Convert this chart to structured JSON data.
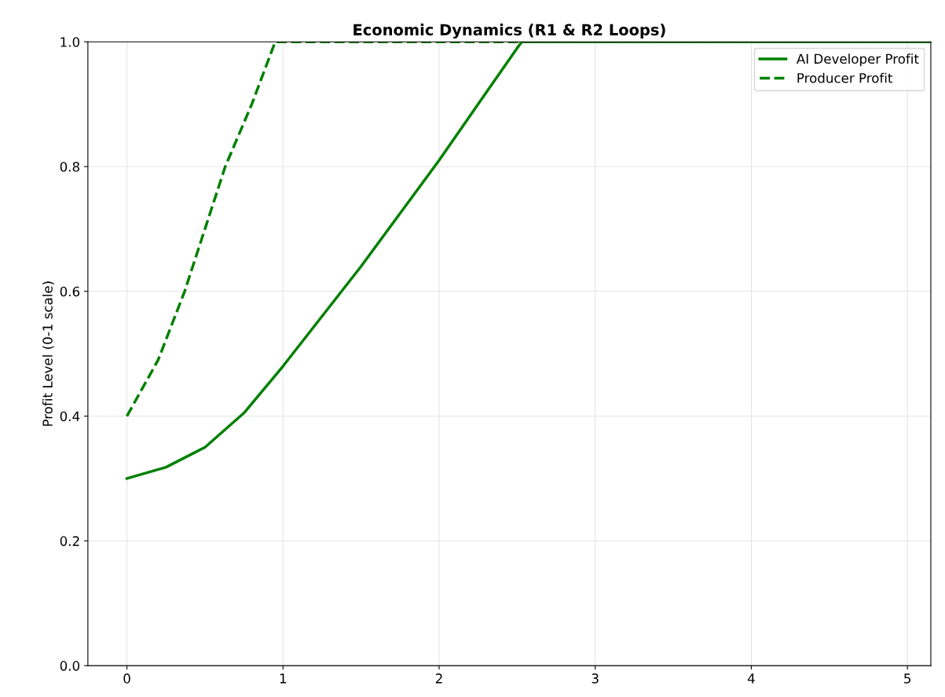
{
  "chart_data": {
    "type": "line",
    "title": "Economic Dynamics (R1 & R2 Loops)",
    "ylabel": "Profit Level (0-1 scale)",
    "xlim": [
      -0.25,
      5.15
    ],
    "ylim": [
      0.0,
      1.0
    ],
    "xticks": [
      0,
      1,
      2,
      3,
      4,
      5
    ],
    "yticks": [
      {
        "value": 0,
        "label": "0.0"
      },
      {
        "value": 0.2,
        "label": "0.2"
      },
      {
        "value": 0.4,
        "label": "0.4"
      },
      {
        "value": 0.6,
        "label": "0.6"
      },
      {
        "value": 0.8,
        "label": "0.8"
      },
      {
        "value": 1.0,
        "label": "1.0"
      }
    ],
    "grid": true,
    "legend": "top right",
    "marker": "none",
    "series": [
      {
        "name": "AI Developer Profit",
        "color": "#008000",
        "line_style": "solid",
        "x": [
          0,
          0.25,
          0.5,
          0.75,
          1,
          1.25,
          1.5,
          1.75,
          2,
          2.25,
          2.5,
          2.53,
          5.15
        ],
        "values": [
          0.3,
          0.318,
          0.35,
          0.405,
          0.48,
          0.56,
          0.64,
          0.725,
          0.81,
          0.9,
          0.99,
          1.0,
          1.0
        ]
      },
      {
        "name": "Producer Profit",
        "color": "#008000",
        "line_style": "dashed",
        "x": [
          0,
          0.2,
          0.37,
          0.5,
          0.63,
          0.8,
          0.95,
          5.15
        ],
        "values": [
          0.4,
          0.49,
          0.6,
          0.7,
          0.8,
          0.9,
          1.0,
          1.0
        ]
      }
    ]
  }
}
